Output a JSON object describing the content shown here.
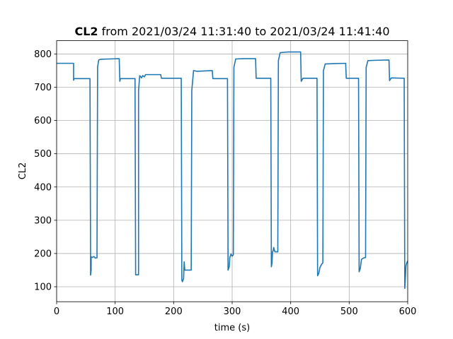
{
  "chart_data": {
    "type": "line",
    "title_bold": "CL2",
    "title_rest": " from 2021/03/24 11:31:40 to 2021/03/24 11:41:40",
    "xlabel": "time (s)",
    "ylabel": "CL2",
    "xlim": [
      0,
      600
    ],
    "ylim": [
      55,
      840
    ],
    "xticks": [
      0,
      100,
      200,
      300,
      400,
      500,
      600
    ],
    "yticks": [
      100,
      200,
      300,
      400,
      500,
      600,
      700,
      800
    ],
    "grid": true,
    "line_color": "#1f77b4",
    "series": [
      {
        "points": [
          [
            0,
            772
          ],
          [
            29,
            772
          ],
          [
            29,
            721
          ],
          [
            30,
            726
          ],
          [
            57,
            726
          ],
          [
            58,
            190
          ],
          [
            58,
            135
          ],
          [
            59,
            150
          ],
          [
            59,
            190
          ],
          [
            61,
            188
          ],
          [
            64,
            191
          ],
          [
            66,
            186
          ],
          [
            69,
            187
          ],
          [
            69,
            190
          ],
          [
            70,
            760
          ],
          [
            72,
            782
          ],
          [
            75,
            784
          ],
          [
            90,
            785
          ],
          [
            107,
            786
          ],
          [
            108,
            718
          ],
          [
            109,
            726
          ],
          [
            134,
            726
          ],
          [
            135,
            140
          ],
          [
            135,
            136
          ],
          [
            140,
            136
          ],
          [
            140,
            690
          ],
          [
            142,
            735
          ],
          [
            145,
            728
          ],
          [
            147,
            735
          ],
          [
            150,
            731
          ],
          [
            152,
            738
          ],
          [
            178,
            738
          ],
          [
            179,
            727
          ],
          [
            210,
            727
          ],
          [
            213,
            727
          ],
          [
            214,
            120
          ],
          [
            215,
            115
          ],
          [
            217,
            125
          ],
          [
            218,
            175
          ],
          [
            219,
            150
          ],
          [
            230,
            150
          ],
          [
            231,
            690
          ],
          [
            234,
            750
          ],
          [
            240,
            748
          ],
          [
            266,
            750
          ],
          [
            267,
            726
          ],
          [
            292,
            726
          ],
          [
            293,
            150
          ],
          [
            295,
            160
          ],
          [
            296,
            188
          ],
          [
            298,
            198
          ],
          [
            300,
            192
          ],
          [
            302,
            196
          ],
          [
            303,
            760
          ],
          [
            306,
            785
          ],
          [
            320,
            786
          ],
          [
            340,
            786
          ],
          [
            341,
            727
          ],
          [
            366,
            727
          ],
          [
            367,
            160
          ],
          [
            368,
            170
          ],
          [
            369,
            205
          ],
          [
            370,
            208
          ],
          [
            371,
            218
          ],
          [
            373,
            205
          ],
          [
            378,
            205
          ],
          [
            379,
            780
          ],
          [
            382,
            804
          ],
          [
            395,
            806
          ],
          [
            417,
            806
          ],
          [
            418,
            718
          ],
          [
            421,
            727
          ],
          [
            445,
            727
          ],
          [
            446,
            133
          ],
          [
            448,
            140
          ],
          [
            450,
            158
          ],
          [
            453,
            168
          ],
          [
            455,
            172
          ],
          [
            456,
            750
          ],
          [
            459,
            770
          ],
          [
            475,
            771
          ],
          [
            494,
            772
          ],
          [
            495,
            727
          ],
          [
            516,
            727
          ],
          [
            517,
            145
          ],
          [
            519,
            155
          ],
          [
            521,
            182
          ],
          [
            524,
            186
          ],
          [
            528,
            188
          ],
          [
            529,
            760
          ],
          [
            532,
            780
          ],
          [
            545,
            781
          ],
          [
            568,
            782
          ],
          [
            569,
            720
          ],
          [
            572,
            728
          ],
          [
            594,
            727
          ],
          [
            595,
            95
          ],
          [
            596,
            125
          ],
          [
            597,
            162
          ],
          [
            598,
            170
          ],
          [
            600,
            178
          ]
        ]
      }
    ]
  }
}
